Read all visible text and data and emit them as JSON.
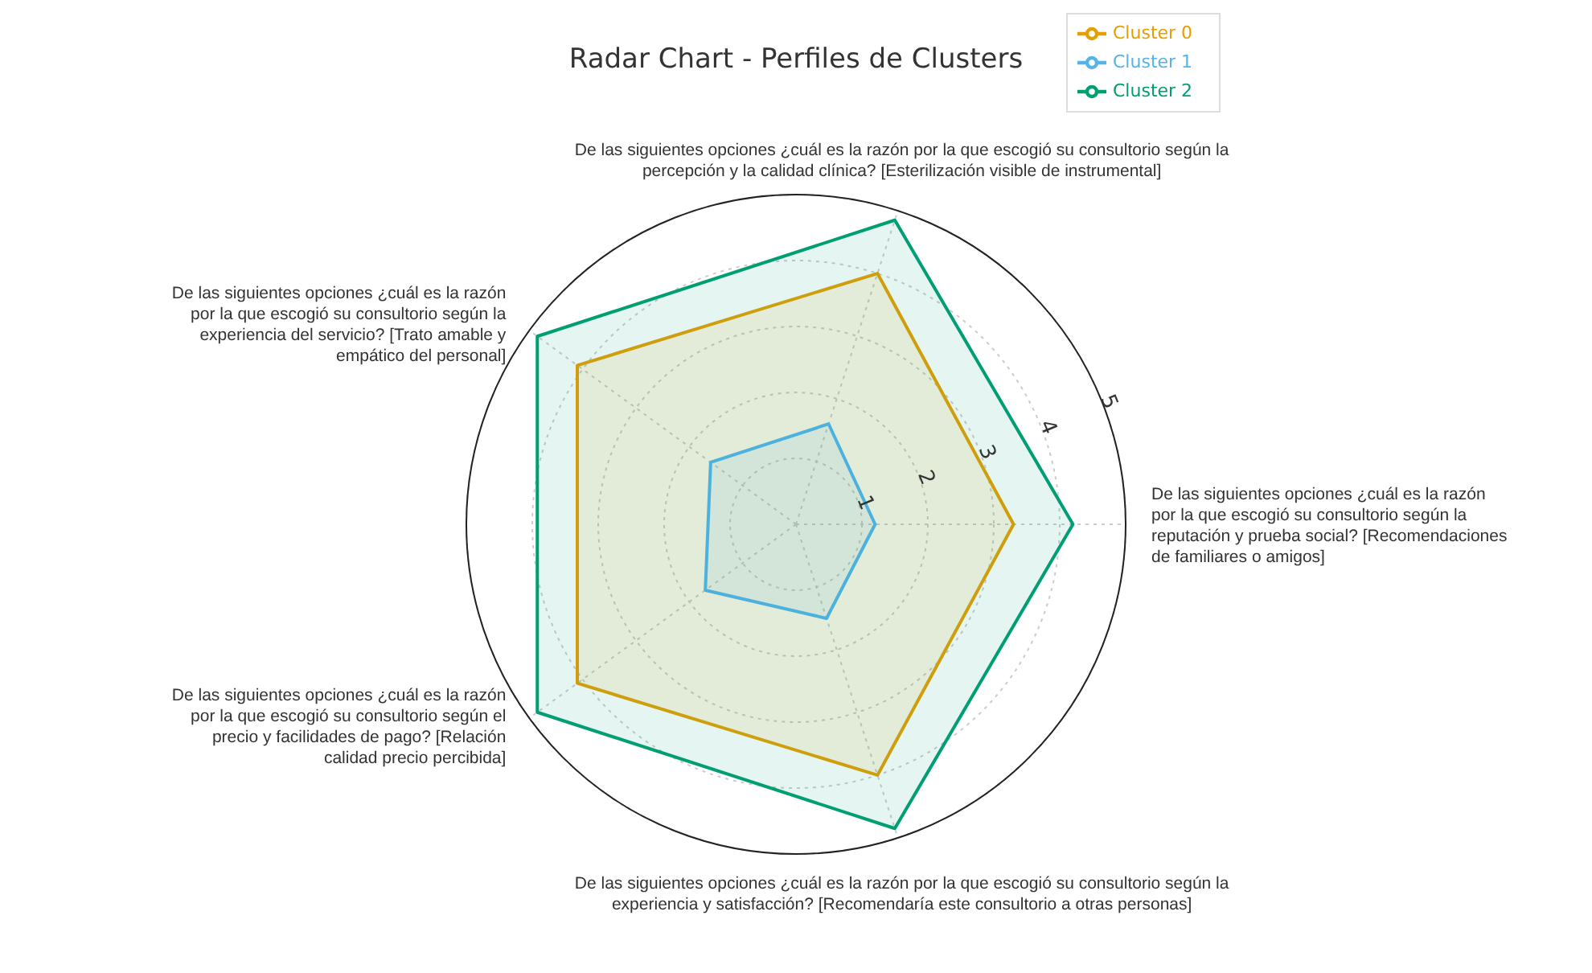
{
  "chart_data": {
    "type": "radar",
    "title": "Radar Chart - Perfiles de Clusters",
    "categories": [
      "De las siguientes opciones ¿cuál es la razón por la que escogió su consultorio según la percepción y la calidad clínica? [Esterilización visible de instrumental]",
      "De las siguientes opciones ¿cuál es la razón por la que escogió su consultorio según la reputación y prueba social? [Recomendaciones de familiares o amigos]",
      "De las siguientes opciones ¿cuál es la razón por la que escogió su consultorio según la experiencia y satisfacción? [Recomendaría este consultorio a otras personas]",
      "De las siguientes opciones ¿cuál es la razón por la que escogió su consultorio según el precio y facilidades de pago? [Relación calidad precio percibida]",
      "De las siguientes opciones ¿cuál es la razón por la que escogió su consultorio según la experiencia del servicio? [Trato amable y empático del personal]"
    ],
    "series": [
      {
        "name": "Cluster 0",
        "color": "#e69f00",
        "values": [
          4.0,
          3.3,
          4.0,
          4.1,
          4.1
        ]
      },
      {
        "name": "Cluster 1",
        "color": "#56b4e9",
        "values": [
          1.6,
          1.2,
          1.5,
          1.7,
          1.6
        ]
      },
      {
        "name": "Cluster 2",
        "color": "#009e73",
        "values": [
          4.85,
          4.2,
          4.85,
          4.85,
          4.85
        ]
      }
    ],
    "ylim": [
      0,
      5
    ],
    "yticks": [
      1,
      2,
      3,
      4,
      5
    ],
    "grid": true,
    "legend": "top right"
  }
}
